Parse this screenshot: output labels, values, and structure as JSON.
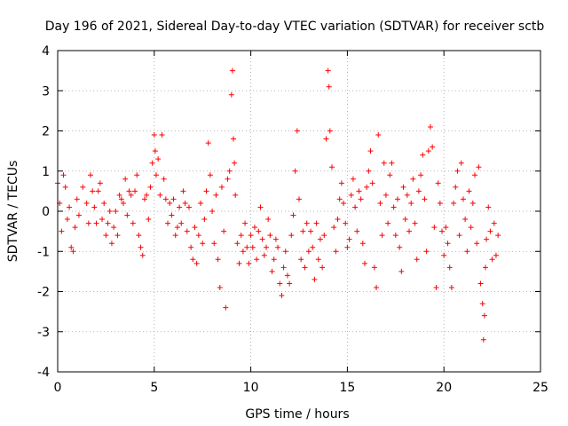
{
  "chart_data": {
    "type": "scatter",
    "title": "Day 196 of 2021, Sidereal Day-to-day VTEC variation (SDTVAR) for receiver sctb",
    "xlabel": "GPS time / hours",
    "ylabel": "SDTVAR / TECUs",
    "xlim": [
      0,
      25
    ],
    "ylim": [
      -4,
      4
    ],
    "xticks": [
      0,
      5,
      10,
      15,
      20,
      25
    ],
    "yticks": [
      -4,
      -3,
      -2,
      -1,
      0,
      1,
      2,
      3,
      4
    ],
    "grid": true,
    "marker": "+",
    "color": "#ff0000",
    "series": [
      {
        "name": "SDTVAR",
        "points": [
          [
            0.0,
            0.7
          ],
          [
            0.1,
            0.2
          ],
          [
            0.2,
            -0.5
          ],
          [
            0.3,
            0.9
          ],
          [
            0.4,
            0.6
          ],
          [
            0.5,
            -0.2
          ],
          [
            0.6,
            0.1
          ],
          [
            0.7,
            -0.9
          ],
          [
            0.8,
            -1.0
          ],
          [
            0.9,
            -0.4
          ],
          [
            1.0,
            0.3
          ],
          [
            1.1,
            -0.1
          ],
          [
            1.3,
            0.6
          ],
          [
            1.5,
            0.2
          ],
          [
            1.6,
            -0.3
          ],
          [
            1.7,
            0.9
          ],
          [
            1.8,
            0.5
          ],
          [
            1.9,
            0.1
          ],
          [
            2.0,
            -0.3
          ],
          [
            2.1,
            0.5
          ],
          [
            2.2,
            0.7
          ],
          [
            2.3,
            -0.2
          ],
          [
            2.4,
            0.2
          ],
          [
            2.5,
            -0.6
          ],
          [
            2.6,
            -0.3
          ],
          [
            2.7,
            0.0
          ],
          [
            2.8,
            -0.8
          ],
          [
            2.9,
            -0.4
          ],
          [
            3.0,
            0.0
          ],
          [
            3.1,
            -0.6
          ],
          [
            3.2,
            0.4
          ],
          [
            3.3,
            0.3
          ],
          [
            3.4,
            0.2
          ],
          [
            3.5,
            0.8
          ],
          [
            3.6,
            -0.1
          ],
          [
            3.7,
            0.5
          ],
          [
            3.8,
            0.4
          ],
          [
            3.9,
            -0.3
          ],
          [
            4.0,
            0.5
          ],
          [
            4.1,
            0.9
          ],
          [
            4.2,
            -0.6
          ],
          [
            4.3,
            -0.9
          ],
          [
            4.4,
            -1.1
          ],
          [
            4.5,
            0.3
          ],
          [
            4.6,
            0.4
          ],
          [
            4.7,
            -0.2
          ],
          [
            4.8,
            0.6
          ],
          [
            4.9,
            1.2
          ],
          [
            5.0,
            1.9
          ],
          [
            5.05,
            1.5
          ],
          [
            5.1,
            0.9
          ],
          [
            5.2,
            1.3
          ],
          [
            5.3,
            0.4
          ],
          [
            5.4,
            1.9
          ],
          [
            5.5,
            0.8
          ],
          [
            5.6,
            0.3
          ],
          [
            5.7,
            -0.3
          ],
          [
            5.8,
            0.2
          ],
          [
            5.9,
            -0.1
          ],
          [
            6.0,
            0.3
          ],
          [
            6.1,
            -0.6
          ],
          [
            6.2,
            -0.4
          ],
          [
            6.3,
            0.1
          ],
          [
            6.4,
            -0.3
          ],
          [
            6.5,
            0.5
          ],
          [
            6.6,
            0.2
          ],
          [
            6.7,
            -0.5
          ],
          [
            6.8,
            0.1
          ],
          [
            6.9,
            -0.9
          ],
          [
            7.0,
            -1.2
          ],
          [
            7.1,
            -0.4
          ],
          [
            7.2,
            -1.3
          ],
          [
            7.3,
            -0.6
          ],
          [
            7.4,
            0.2
          ],
          [
            7.5,
            -0.8
          ],
          [
            7.6,
            -0.2
          ],
          [
            7.7,
            0.5
          ],
          [
            7.8,
            1.7
          ],
          [
            7.9,
            0.9
          ],
          [
            8.0,
            0.0
          ],
          [
            8.1,
            -0.8
          ],
          [
            8.2,
            0.4
          ],
          [
            8.3,
            -1.2
          ],
          [
            8.4,
            -1.9
          ],
          [
            8.5,
            0.6
          ],
          [
            8.6,
            -0.5
          ],
          [
            8.7,
            -2.4
          ],
          [
            8.8,
            0.8
          ],
          [
            8.9,
            1.0
          ],
          [
            9.0,
            2.9
          ],
          [
            9.05,
            3.5
          ],
          [
            9.1,
            1.8
          ],
          [
            9.15,
            1.2
          ],
          [
            9.2,
            0.4
          ],
          [
            9.3,
            -0.8
          ],
          [
            9.4,
            -1.3
          ],
          [
            9.5,
            -0.6
          ],
          [
            9.6,
            -1.0
          ],
          [
            9.7,
            -0.3
          ],
          [
            9.8,
            -0.9
          ],
          [
            9.9,
            -1.3
          ],
          [
            10.0,
            -0.6
          ],
          [
            10.1,
            -0.9
          ],
          [
            10.2,
            -0.4
          ],
          [
            10.3,
            -1.2
          ],
          [
            10.4,
            -0.5
          ],
          [
            10.5,
            0.1
          ],
          [
            10.6,
            -0.7
          ],
          [
            10.7,
            -1.1
          ],
          [
            10.8,
            -0.9
          ],
          [
            10.9,
            -0.2
          ],
          [
            11.0,
            -0.6
          ],
          [
            11.1,
            -1.5
          ],
          [
            11.2,
            -1.2
          ],
          [
            11.3,
            -0.7
          ],
          [
            11.4,
            -0.9
          ],
          [
            11.5,
            -1.8
          ],
          [
            11.6,
            -2.1
          ],
          [
            11.7,
            -1.4
          ],
          [
            11.8,
            -1.0
          ],
          [
            11.9,
            -1.6
          ],
          [
            12.0,
            -1.8
          ],
          [
            12.1,
            -0.6
          ],
          [
            12.2,
            -0.1
          ],
          [
            12.3,
            1.0
          ],
          [
            12.4,
            2.0
          ],
          [
            12.5,
            0.3
          ],
          [
            12.6,
            -1.2
          ],
          [
            12.7,
            -0.5
          ],
          [
            12.8,
            -1.4
          ],
          [
            12.9,
            -0.3
          ],
          [
            13.0,
            -1.0
          ],
          [
            13.1,
            -0.5
          ],
          [
            13.2,
            -0.9
          ],
          [
            13.3,
            -1.7
          ],
          [
            13.4,
            -0.3
          ],
          [
            13.5,
            -1.2
          ],
          [
            13.6,
            -0.7
          ],
          [
            13.7,
            -1.4
          ],
          [
            13.8,
            -0.6
          ],
          [
            13.9,
            1.8
          ],
          [
            14.0,
            3.5
          ],
          [
            14.05,
            3.1
          ],
          [
            14.1,
            2.0
          ],
          [
            14.2,
            1.1
          ],
          [
            14.3,
            -0.4
          ],
          [
            14.4,
            -1.0
          ],
          [
            14.5,
            -0.2
          ],
          [
            14.6,
            0.3
          ],
          [
            14.7,
            0.7
          ],
          [
            14.8,
            0.2
          ],
          [
            14.9,
            -0.3
          ],
          [
            15.0,
            -0.9
          ],
          [
            15.1,
            -0.7
          ],
          [
            15.2,
            0.4
          ],
          [
            15.3,
            0.8
          ],
          [
            15.4,
            0.1
          ],
          [
            15.5,
            -0.5
          ],
          [
            15.6,
            0.5
          ],
          [
            15.7,
            0.3
          ],
          [
            15.8,
            -0.8
          ],
          [
            15.9,
            -1.3
          ],
          [
            16.0,
            0.6
          ],
          [
            16.1,
            1.0
          ],
          [
            16.2,
            1.5
          ],
          [
            16.3,
            0.7
          ],
          [
            16.4,
            -1.4
          ],
          [
            16.5,
            -1.9
          ],
          [
            16.6,
            1.9
          ],
          [
            16.7,
            0.2
          ],
          [
            16.8,
            -0.6
          ],
          [
            16.9,
            1.2
          ],
          [
            17.0,
            0.4
          ],
          [
            17.1,
            -0.3
          ],
          [
            17.2,
            0.9
          ],
          [
            17.3,
            1.2
          ],
          [
            17.4,
            0.1
          ],
          [
            17.5,
            -0.6
          ],
          [
            17.6,
            0.3
          ],
          [
            17.7,
            -0.9
          ],
          [
            17.8,
            -1.5
          ],
          [
            17.9,
            0.6
          ],
          [
            18.0,
            -0.2
          ],
          [
            18.1,
            0.4
          ],
          [
            18.2,
            -0.5
          ],
          [
            18.3,
            0.2
          ],
          [
            18.4,
            0.8
          ],
          [
            18.5,
            -0.3
          ],
          [
            18.6,
            -1.2
          ],
          [
            18.7,
            0.5
          ],
          [
            18.8,
            0.9
          ],
          [
            18.9,
            1.4
          ],
          [
            19.0,
            0.3
          ],
          [
            19.1,
            -1.0
          ],
          [
            19.2,
            1.5
          ],
          [
            19.3,
            2.1
          ],
          [
            19.4,
            1.6
          ],
          [
            19.5,
            -0.4
          ],
          [
            19.6,
            -1.9
          ],
          [
            19.7,
            0.7
          ],
          [
            19.8,
            0.2
          ],
          [
            19.9,
            -0.5
          ],
          [
            20.0,
            -1.1
          ],
          [
            20.1,
            -0.4
          ],
          [
            20.2,
            -0.8
          ],
          [
            20.3,
            -1.4
          ],
          [
            20.4,
            -1.9
          ],
          [
            20.5,
            0.2
          ],
          [
            20.6,
            0.6
          ],
          [
            20.7,
            1.0
          ],
          [
            20.8,
            -0.6
          ],
          [
            20.9,
            1.2
          ],
          [
            21.0,
            0.3
          ],
          [
            21.1,
            -0.2
          ],
          [
            21.2,
            -1.0
          ],
          [
            21.3,
            0.5
          ],
          [
            21.4,
            -0.4
          ],
          [
            21.5,
            0.2
          ],
          [
            21.6,
            0.9
          ],
          [
            21.7,
            -0.8
          ],
          [
            21.8,
            1.1
          ],
          [
            21.9,
            -1.8
          ],
          [
            22.0,
            -2.3
          ],
          [
            22.05,
            -3.2
          ],
          [
            22.1,
            -2.6
          ],
          [
            22.15,
            -1.4
          ],
          [
            22.2,
            -0.7
          ],
          [
            22.3,
            0.1
          ],
          [
            22.4,
            -0.5
          ],
          [
            22.5,
            -1.2
          ],
          [
            22.6,
            -0.3
          ],
          [
            22.7,
            -1.1
          ],
          [
            22.8,
            -0.6
          ]
        ]
      }
    ]
  }
}
